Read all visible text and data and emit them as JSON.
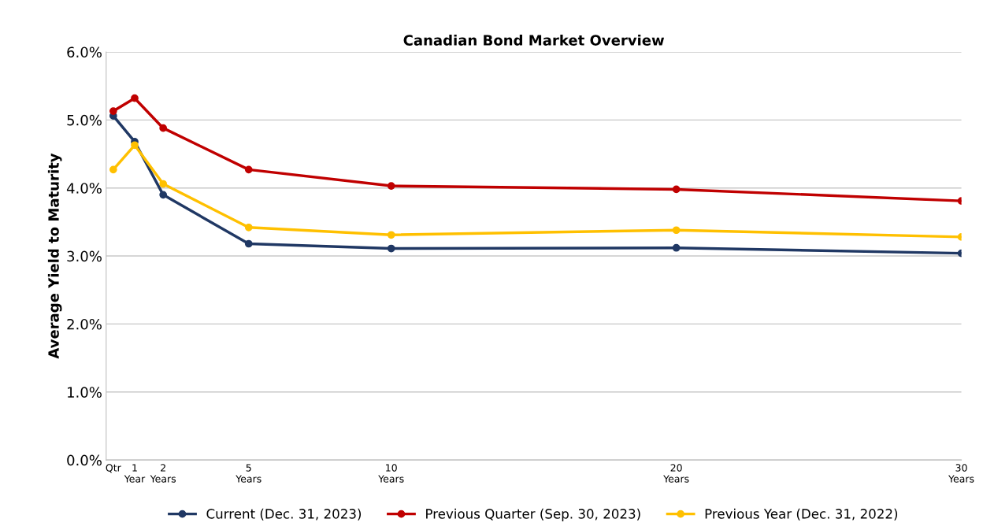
{
  "chart_data": {
    "type": "line",
    "title": "Canadian Bond Market Overview",
    "ylabel": "Average Yield to Maturity",
    "x": [
      0.25,
      1,
      2,
      5,
      10,
      20,
      30
    ],
    "xlim": [
      0,
      30
    ],
    "xticks": [
      {
        "value": 0.25,
        "label": "Qtr"
      },
      {
        "value": 1,
        "label": "1\nYear"
      },
      {
        "value": 2,
        "label": "2\nYears"
      },
      {
        "value": 5,
        "label": "5\nYears"
      },
      {
        "value": 10,
        "label": "10\nYears"
      },
      {
        "value": 20,
        "label": "20\nYears"
      },
      {
        "value": 30,
        "label": "30\nYears"
      }
    ],
    "ylim": [
      0,
      6
    ],
    "yticks": [
      {
        "value": 0,
        "label": "0.0%"
      },
      {
        "value": 1,
        "label": "1.0%"
      },
      {
        "value": 2,
        "label": "2.0%"
      },
      {
        "value": 3,
        "label": "3.0%"
      },
      {
        "value": 4,
        "label": "4.0%"
      },
      {
        "value": 5,
        "label": "5.0%"
      },
      {
        "value": 6,
        "label": "6.0%"
      }
    ],
    "series": [
      {
        "name": "Current (Dec. 31, 2023)",
        "color": "#203864",
        "values": [
          5.06,
          4.68,
          3.9,
          3.18,
          3.11,
          3.12,
          3.04
        ]
      },
      {
        "name": "Previous Quarter (Sep. 30, 2023)",
        "color": "#c00000",
        "values": [
          5.13,
          5.32,
          4.88,
          4.27,
          4.03,
          3.98,
          3.81
        ]
      },
      {
        "name": "Previous Year (Dec. 31, 2022)",
        "color": "#ffc000",
        "values": [
          4.27,
          4.63,
          4.06,
          3.42,
          3.31,
          3.38,
          3.28
        ]
      }
    ],
    "grid": "y",
    "legend": "bottom",
    "marker": "circle",
    "line_style": "solid"
  }
}
